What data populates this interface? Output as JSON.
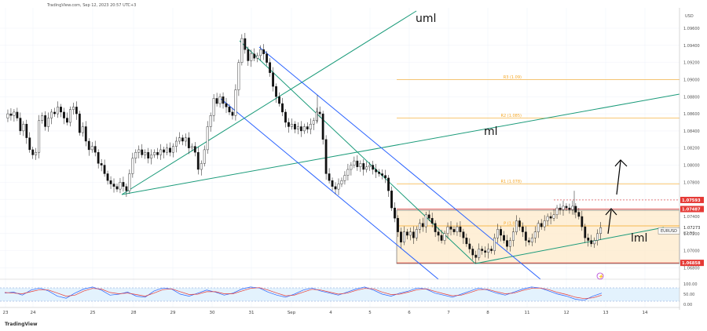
{
  "header": {
    "source": "TradingView.com, Sep 12, 2023 20:57 UTC+3",
    "currency": "USD",
    "logo": "TradingView"
  },
  "chart_data": [
    {
      "type": "candlestick",
      "symbol": "EURUSD",
      "last_price": "1.07273",
      "countdown": "02:50",
      "ylim": [
        1.0675,
        1.0975
      ],
      "y_ticks": [
        "1.09600",
        "1.09400",
        "1.09200",
        "1.09000",
        "1.08800",
        "1.08600",
        "1.08400",
        "1.08200",
        "1.08000",
        "1.07800",
        "1.07600",
        "1.07400",
        "1.07200",
        "1.07000",
        "1.06800"
      ],
      "x_ticks": [
        "23",
        "24",
        "25",
        "28",
        "29",
        "30",
        "31",
        "Sep",
        "4",
        "5",
        "6",
        "7",
        "8",
        "11",
        "12",
        "13",
        "14"
      ],
      "price_series": [
        [
          0,
          1.0855
        ],
        [
          4,
          1.086
        ],
        [
          8,
          1.0858
        ],
        [
          12,
          1.0862
        ],
        [
          16,
          1.0855
        ],
        [
          20,
          1.084
        ],
        [
          24,
          1.0848
        ],
        [
          28,
          1.0832
        ],
        [
          32,
          1.0818
        ],
        [
          36,
          1.0812
        ],
        [
          40,
          1.0815
        ],
        [
          44,
          1.0852
        ],
        [
          48,
          1.0858
        ],
        [
          52,
          1.0845
        ],
        [
          56,
          1.0855
        ],
        [
          60,
          1.0862
        ],
        [
          64,
          1.086
        ],
        [
          68,
          1.0868
        ],
        [
          72,
          1.0862
        ],
        [
          76,
          1.0855
        ],
        [
          80,
          1.085
        ],
        [
          84,
          1.0865
        ],
        [
          88,
          1.0868
        ],
        [
          92,
          1.086
        ],
        [
          96,
          1.0838
        ],
        [
          100,
          1.0845
        ],
        [
          104,
          1.0828
        ],
        [
          108,
          1.0818
        ],
        [
          112,
          1.0822
        ],
        [
          116,
          1.0815
        ],
        [
          120,
          1.0802
        ],
        [
          124,
          1.08
        ],
        [
          128,
          1.079
        ],
        [
          132,
          1.0782
        ],
        [
          136,
          1.0778
        ],
        [
          140,
          1.0775
        ],
        [
          144,
          1.0772
        ],
        [
          148,
          1.078
        ],
        [
          152,
          1.0775
        ],
        [
          156,
          1.077
        ],
        [
          160,
          1.079
        ],
        [
          164,
          1.0808
        ],
        [
          168,
          1.0815
        ],
        [
          172,
          1.0818
        ],
        [
          176,
          1.0812
        ],
        [
          180,
          1.0815
        ],
        [
          184,
          1.0808
        ],
        [
          188,
          1.0812
        ],
        [
          192,
          1.0815
        ],
        [
          196,
          1.0812
        ],
        [
          200,
          1.0818
        ],
        [
          204,
          1.0815
        ],
        [
          208,
          1.082
        ],
        [
          212,
          1.0815
        ],
        [
          216,
          1.0822
        ],
        [
          220,
          1.0828
        ],
        [
          224,
          1.0832
        ],
        [
          228,
          1.0828
        ],
        [
          232,
          1.0832
        ],
        [
          236,
          1.082
        ],
        [
          240,
          1.0822
        ],
        [
          244,
          1.0815
        ],
        [
          248,
          1.0795
        ],
        [
          252,
          1.0802
        ],
        [
          256,
          1.0818
        ],
        [
          260,
          1.0845
        ],
        [
          264,
          1.0858
        ],
        [
          268,
          1.0878
        ],
        [
          272,
          1.0872
        ],
        [
          276,
          1.088
        ],
        [
          280,
          1.0872
        ],
        [
          284,
          1.0868
        ],
        [
          288,
          1.0862
        ],
        [
          292,
          1.0858
        ],
        [
          296,
          1.0888
        ],
        [
          300,
          1.092
        ],
        [
          304,
          1.0948
        ],
        [
          308,
          1.0935
        ],
        [
          312,
          1.0922
        ],
        [
          316,
          1.093
        ],
        [
          320,
          1.0925
        ],
        [
          324,
          1.0928
        ],
        [
          328,
          1.0935
        ],
        [
          332,
          1.093
        ],
        [
          336,
          1.092
        ],
        [
          340,
          1.0908
        ],
        [
          344,
          1.0892
        ],
        [
          348,
          1.088
        ],
        [
          352,
          1.0872
        ],
        [
          356,
          1.0862
        ],
        [
          360,
          1.085
        ],
        [
          364,
          1.0845
        ],
        [
          368,
          1.0848
        ],
        [
          372,
          1.0842
        ],
        [
          376,
          1.0845
        ],
        [
          380,
          1.084
        ],
        [
          384,
          1.0845
        ],
        [
          388,
          1.0842
        ],
        [
          392,
          1.0848
        ],
        [
          396,
          1.0852
        ],
        [
          400,
          1.0862
        ],
        [
          404,
          1.086
        ],
        [
          408,
          1.083
        ],
        [
          412,
          1.079
        ],
        [
          416,
          1.0782
        ],
        [
          420,
          1.0775
        ],
        [
          424,
          1.0772
        ],
        [
          428,
          1.0778
        ],
        [
          432,
          1.0782
        ],
        [
          436,
          1.0788
        ],
        [
          440,
          1.0795
        ],
        [
          444,
          1.08
        ],
        [
          448,
          1.0805
        ],
        [
          452,
          1.0798
        ],
        [
          456,
          1.0802
        ],
        [
          460,
          1.0795
        ],
        [
          464,
          1.0798
        ],
        [
          468,
          1.08
        ],
        [
          472,
          1.0795
        ],
        [
          476,
          1.0792
        ],
        [
          480,
          1.079
        ],
        [
          484,
          1.0788
        ],
        [
          488,
          1.0785
        ],
        [
          492,
          1.077
        ],
        [
          496,
          1.075
        ],
        [
          500,
          1.0738
        ],
        [
          504,
          1.0722
        ],
        [
          508,
          1.071
        ],
        [
          512,
          1.0722
        ],
        [
          516,
          1.0718
        ],
        [
          520,
          1.0722
        ],
        [
          524,
          1.0715
        ],
        [
          528,
          1.0725
        ],
        [
          532,
          1.0732
        ],
        [
          536,
          1.0728
        ],
        [
          540,
          1.0742
        ],
        [
          544,
          1.0738
        ],
        [
          548,
          1.0732
        ],
        [
          552,
          1.0722
        ],
        [
          556,
          1.0718
        ],
        [
          560,
          1.0712
        ],
        [
          564,
          1.072
        ],
        [
          568,
          1.0728
        ],
        [
          572,
          1.0725
        ],
        [
          576,
          1.0722
        ],
        [
          580,
          1.0728
        ],
        [
          584,
          1.0722
        ],
        [
          588,
          1.0715
        ],
        [
          592,
          1.0708
        ],
        [
          596,
          1.0702
        ],
        [
          600,
          1.0695
        ],
        [
          604,
          1.0692
        ],
        [
          608,
          1.0702
        ],
        [
          612,
          1.07
        ],
        [
          616,
          1.0698
        ],
        [
          620,
          1.0702
        ],
        [
          624,
          1.07
        ],
        [
          628,
          1.0715
        ],
        [
          632,
          1.0725
        ],
        [
          636,
          1.0718
        ],
        [
          640,
          1.0712
        ],
        [
          644,
          1.0705
        ],
        [
          648,
          1.0712
        ],
        [
          652,
          1.0722
        ],
        [
          656,
          1.0735
        ],
        [
          660,
          1.0728
        ],
        [
          664,
          1.0722
        ],
        [
          668,
          1.0712
        ],
        [
          672,
          1.071
        ],
        [
          676,
          1.0715
        ],
        [
          680,
          1.0722
        ],
        [
          684,
          1.0732
        ],
        [
          688,
          1.0728
        ],
        [
          692,
          1.0735
        ],
        [
          696,
          1.074
        ],
        [
          700,
          1.0738
        ],
        [
          704,
          1.0742
        ],
        [
          708,
          1.075
        ],
        [
          712,
          1.0748
        ],
        [
          716,
          1.0752
        ],
        [
          720,
          1.075
        ],
        [
          724,
          1.0748
        ],
        [
          728,
          1.0752
        ],
        [
          732,
          1.0745
        ],
        [
          736,
          1.074
        ],
        [
          740,
          1.0728
        ],
        [
          744,
          1.0715
        ],
        [
          748,
          1.0712
        ],
        [
          752,
          1.0708
        ],
        [
          756,
          1.0712
        ],
        [
          760,
          1.072
        ],
        [
          764,
          1.0727
        ]
      ],
      "levels": [
        {
          "label": "R3 (1.09)",
          "value": 1.09,
          "color": "#f5a623"
        },
        {
          "label": "R2 (1.085)",
          "value": 1.0855,
          "color": "#f5a623"
        },
        {
          "label": "R1 (1.078)",
          "value": 1.0778,
          "color": "#f5a623"
        },
        {
          "label": "P (1.073)",
          "value": 1.0729,
          "color": "#f5a623"
        },
        {
          "label": "1.07593",
          "value": 1.07593,
          "color": "#e53935"
        },
        {
          "label": "1.07487",
          "value": 1.07487,
          "color": "#e53935"
        },
        {
          "label": "1.06858",
          "value": 1.06858,
          "color": "#e53935"
        }
      ],
      "annotations": [
        "uml",
        "ml",
        "lml"
      ]
    },
    {
      "type": "line",
      "name": "stochastic",
      "ylim": [
        0,
        100
      ],
      "y_ticks": [
        "100.00",
        "50.00",
        "0.00"
      ],
      "bands": [
        80,
        20
      ],
      "series": [
        {
          "color": "#2962ff",
          "values": [
            55,
            60,
            45,
            70,
            80,
            65,
            40,
            30,
            55,
            75,
            85,
            70,
            45,
            50,
            60,
            40,
            35,
            65,
            80,
            75,
            50,
            40,
            55,
            70,
            60,
            45,
            55,
            75,
            85,
            80,
            60,
            45,
            35,
            50,
            70,
            80,
            65,
            55,
            45,
            60,
            75,
            85,
            70,
            50,
            40,
            55,
            65,
            80,
            75,
            55,
            45,
            35,
            50,
            65,
            80,
            70,
            55,
            45,
            60,
            75,
            85,
            80,
            65,
            50,
            40,
            25,
            20,
            40,
            55
          ]
        },
        {
          "color": "#e53935",
          "values": [
            58,
            55,
            52,
            62,
            72,
            70,
            55,
            40,
            45,
            65,
            78,
            75,
            58,
            52,
            55,
            48,
            40,
            55,
            72,
            76,
            62,
            48,
            50,
            62,
            62,
            52,
            52,
            65,
            78,
            82,
            70,
            55,
            42,
            45,
            60,
            74,
            70,
            60,
            50,
            55,
            68,
            78,
            76,
            60,
            48,
            50,
            60,
            72,
            76,
            64,
            52,
            42,
            45,
            58,
            72,
            74,
            62,
            52,
            55,
            68,
            78,
            80,
            72,
            58,
            48,
            35,
            28,
            32,
            45
          ]
        }
      ]
    }
  ]
}
